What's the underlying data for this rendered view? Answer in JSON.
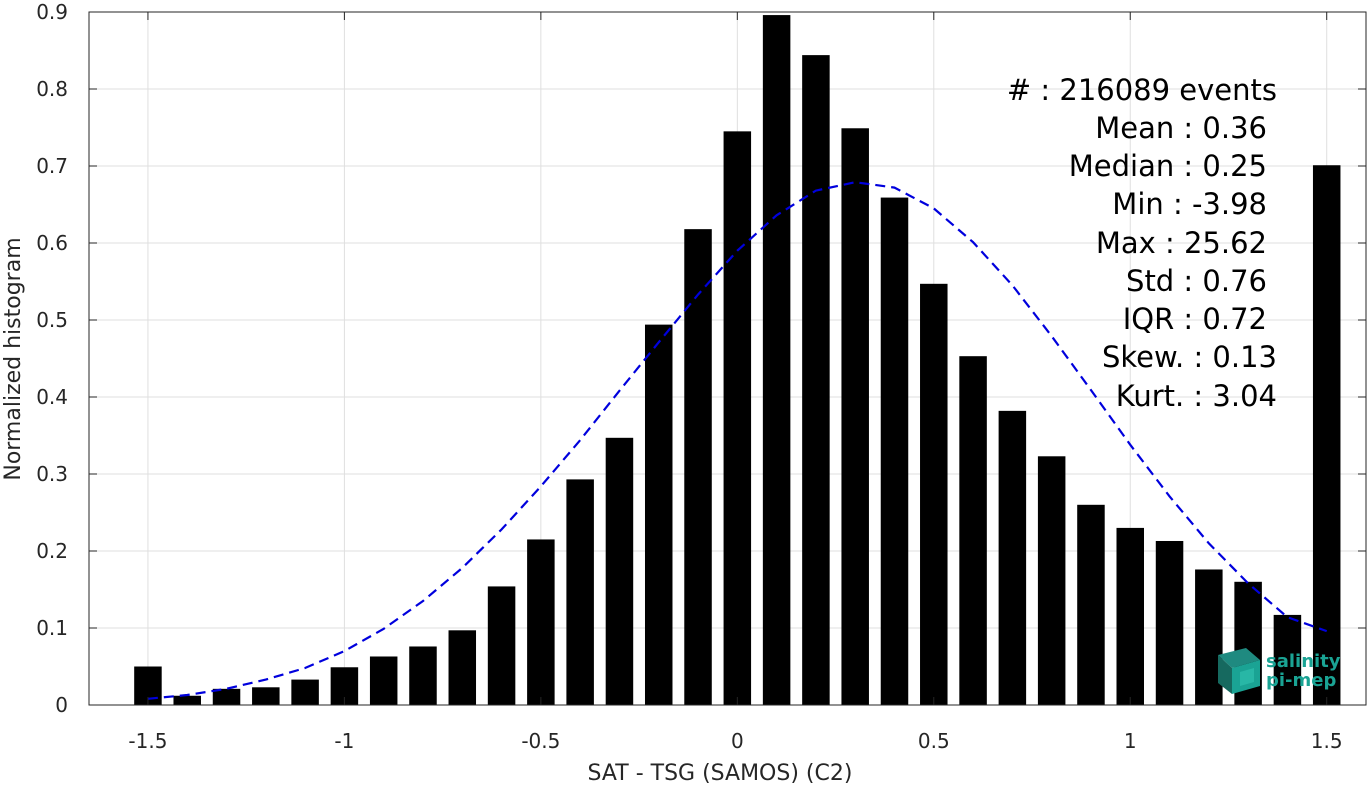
{
  "chart_data": {
    "type": "bar",
    "xlabel": "SAT - TSG (SAMOS) (C2)",
    "ylabel": "Normalized histogram",
    "xlim": [
      -1.65,
      1.6
    ],
    "ylim": [
      0,
      0.9
    ],
    "xticks": [
      -1.5,
      -1,
      -0.5,
      0,
      0.5,
      1,
      1.5
    ],
    "xtick_labels": [
      "-1.5",
      "-1",
      "-0.5",
      "0",
      "0.5",
      "1",
      "1.5"
    ],
    "yticks": [
      0,
      0.1,
      0.2,
      0.3,
      0.4,
      0.5,
      0.6,
      0.7,
      0.8,
      0.9
    ],
    "ytick_labels": [
      "0",
      "0.1",
      "0.2",
      "0.3",
      "0.4",
      "0.5",
      "0.6",
      "0.7",
      "0.8",
      "0.9"
    ],
    "grid": true,
    "bar_color": "#000000",
    "bars": {
      "x": [
        -1.5,
        -1.4,
        -1.3,
        -1.2,
        -1.1,
        -1.0,
        -0.9,
        -0.8,
        -0.7,
        -0.6,
        -0.5,
        -0.4,
        -0.3,
        -0.2,
        -0.1,
        0.0,
        0.1,
        0.2,
        0.3,
        0.4,
        0.5,
        0.6,
        0.7,
        0.8,
        0.9,
        1.0,
        1.1,
        1.2,
        1.3,
        1.4,
        1.5
      ],
      "values": [
        0.05,
        0.012,
        0.021,
        0.023,
        0.033,
        0.049,
        0.063,
        0.076,
        0.097,
        0.154,
        0.215,
        0.293,
        0.347,
        0.494,
        0.618,
        0.745,
        0.896,
        0.844,
        0.749,
        0.659,
        0.547,
        0.453,
        0.382,
        0.323,
        0.26,
        0.23,
        0.213,
        0.176,
        0.16,
        0.117,
        0.701
      ],
      "width": 0.07
    },
    "fit_curve": {
      "style": "dashed",
      "color": "#0000dd",
      "x": [
        -1.5,
        -1.4,
        -1.3,
        -1.2,
        -1.1,
        -1.0,
        -0.9,
        -0.8,
        -0.7,
        -0.6,
        -0.5,
        -0.4,
        -0.3,
        -0.2,
        -0.1,
        0.0,
        0.1,
        0.2,
        0.3,
        0.4,
        0.5,
        0.6,
        0.7,
        0.8,
        0.9,
        1.0,
        1.1,
        1.2,
        1.3,
        1.4,
        1.5
      ],
      "y": [
        0.008,
        0.013,
        0.021,
        0.033,
        0.048,
        0.07,
        0.099,
        0.135,
        0.178,
        0.228,
        0.284,
        0.344,
        0.408,
        0.471,
        0.533,
        0.59,
        0.636,
        0.668,
        0.679,
        0.672,
        0.645,
        0.601,
        0.545,
        0.479,
        0.409,
        0.338,
        0.271,
        0.21,
        0.158,
        0.114,
        0.096
      ]
    },
    "stats": [
      "#  : 216089 events",
      "Mean : 0.36",
      "Median : 0.25",
      "Min : -3.98",
      "Max : 25.62",
      "Std : 0.76",
      "IQR : 0.72",
      "Skew. : 0.13",
      "Kurt. : 3.04"
    ],
    "logo": {
      "line1": "salinity",
      "line2": "pi-mep",
      "color": "#1aa394"
    }
  }
}
